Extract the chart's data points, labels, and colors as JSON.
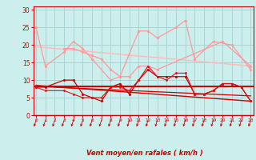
{
  "xlabel": "Vent moyen/en rafales ( km/h )",
  "background_color": "#cceeed",
  "grid_color": "#aad4d4",
  "x": [
    0,
    1,
    2,
    3,
    4,
    5,
    6,
    7,
    8,
    9,
    10,
    11,
    12,
    13,
    14,
    15,
    16,
    17,
    18,
    19,
    20,
    21,
    22,
    23
  ],
  "line_gust_top": [
    25,
    14,
    null,
    18,
    21,
    19,
    16,
    null,
    10,
    11,
    null,
    24,
    24,
    22,
    null,
    25,
    27,
    16,
    null,
    21,
    null,
    20,
    null,
    13
  ],
  "line_gust_mid": [
    null,
    null,
    null,
    19,
    19,
    18,
    17,
    16,
    13,
    11,
    11,
    14,
    14,
    13,
    null,
    null,
    null,
    null,
    null,
    null,
    21,
    null,
    null,
    14
  ],
  "line_wind_dark": [
    8,
    8,
    null,
    10,
    10,
    6,
    5,
    4,
    8,
    9,
    6,
    10,
    13,
    11,
    11,
    11,
    11,
    6,
    6,
    7,
    9,
    9,
    8,
    4
  ],
  "line_wind_dark2": [
    8,
    7,
    null,
    7,
    6,
    5,
    5,
    5,
    8,
    8,
    7,
    10,
    14,
    11,
    10,
    12,
    12,
    6,
    6,
    7,
    9,
    9,
    8,
    4
  ],
  "reg_gust_y0": 19.5,
  "reg_gust_y1": 14.0,
  "reg_wind_flat": 8.3,
  "reg_wind_y0": 8.5,
  "reg_wind_y1": 4.0,
  "reg_wind2_y0": 8.2,
  "reg_wind2_y1": 5.5,
  "ylim": [
    0,
    31
  ],
  "xlim": [
    -0.3,
    23.3
  ],
  "yticks": [
    0,
    5,
    10,
    15,
    20,
    25,
    30
  ]
}
